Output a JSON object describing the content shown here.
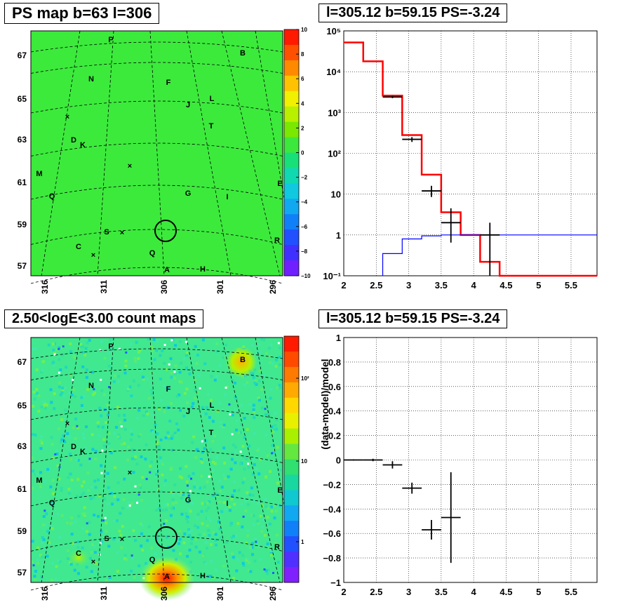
{
  "titles": {
    "ps_map": "PS map b=63 l=306",
    "spectrum": "l=305.12 b=59.15 PS=-3.24",
    "count_map": "2.50<logE<3.00 count maps",
    "residual": "l=305.12 b=59.15 PS=-3.24"
  },
  "chart_data": [
    {
      "type": "heatmap",
      "panel": "ps_map",
      "title": "PS map b=63 l=306",
      "x_tick_labels": [
        "316",
        "311",
        "306",
        "301",
        "296"
      ],
      "y_tick_labels": [
        "67",
        "65",
        "63",
        "61",
        "59",
        "57"
      ],
      "colorbar_ticks": [
        "10",
        "8",
        "6",
        "4",
        "2",
        "0",
        "−2",
        "−4",
        "−6",
        "−8",
        "−10"
      ],
      "colorbar_range": [
        -10,
        10
      ],
      "source_labels": [
        "P",
        "B",
        "N",
        "F",
        "J",
        "L",
        "T",
        "D",
        "K",
        "M",
        "G",
        "I",
        "E",
        "Q",
        "S",
        "R",
        "C",
        "Q",
        "A",
        "H"
      ],
      "marker": {
        "l": 305.12,
        "b": 59.15
      }
    },
    {
      "type": "line",
      "panel": "spectrum",
      "title": "l=305.12 b=59.15 PS=-3.24",
      "x_tick_labels": [
        "2",
        "2.5",
        "3",
        "3.5",
        "4",
        "4.5",
        "5",
        "5.5"
      ],
      "y_tick_labels": [
        "10⁻¹",
        "1",
        "10",
        "10²",
        "10³",
        "10⁴",
        "10⁵"
      ],
      "xlim": [
        2,
        5.9
      ],
      "ylim": [
        0.1,
        100000
      ],
      "yscale": "log",
      "grid": true,
      "series": [
        {
          "color": "#ff0000",
          "style": "step",
          "edges": [
            2,
            2.3,
            2.6,
            2.9,
            3.2,
            3.5,
            3.8,
            4.1,
            4.4,
            5.9
          ],
          "values": [
            52000,
            18000,
            2600,
            280,
            30,
            3.6,
            1.0,
            0.22,
            0.1
          ]
        },
        {
          "color": "#0000ff",
          "style": "step",
          "edges": [
            2.6,
            2.9,
            3.2,
            3.5,
            5.9
          ],
          "values": [
            0.35,
            0.8,
            0.95,
            1.0
          ]
        },
        {
          "color": "#000000",
          "style": "points",
          "x": [
            2.75,
            3.05,
            3.35,
            3.65,
            4.25
          ],
          "y": [
            2400,
            220,
            12,
            2.0,
            1.0
          ],
          "xerr": [
            0.15,
            0.15,
            0.15,
            0.15,
            0.15
          ],
          "ylo": [
            2250,
            190,
            8.5,
            0.65,
            0.1
          ],
          "yhi": [
            2550,
            250,
            16,
            4.5,
            2.0
          ]
        }
      ]
    },
    {
      "type": "heatmap",
      "panel": "count_map",
      "title": "2.50<logE<3.00 count maps",
      "x_tick_labels": [
        "316",
        "311",
        "306",
        "301",
        "296"
      ],
      "y_tick_labels": [
        "67",
        "65",
        "63",
        "61",
        "59",
        "57"
      ],
      "colorbar_ticks": [
        "10²",
        "10",
        "1"
      ],
      "colorbar_scale": "log",
      "source_labels": [
        "P",
        "B",
        "N",
        "F",
        "J",
        "L",
        "T",
        "D",
        "K",
        "M",
        "G",
        "I",
        "E",
        "Q",
        "S",
        "R",
        "C",
        "Q",
        "A",
        "H"
      ],
      "marker": {
        "l": 305.12,
        "b": 59.15
      }
    },
    {
      "type": "scatter",
      "panel": "residual",
      "title": "l=305.12 b=59.15 PS=-3.24",
      "ylabel": "(data-model)/model",
      "x_tick_labels": [
        "2",
        "2.5",
        "3",
        "3.5",
        "4",
        "4.5",
        "5",
        "5.5"
      ],
      "y_tick_labels": [
        "−1",
        "−0.8",
        "−0.6",
        "−0.4",
        "−0.2",
        "0",
        "0.2",
        "0.4",
        "0.6",
        "0.8",
        "1"
      ],
      "xlim": [
        2,
        5.9
      ],
      "ylim": [
        -1,
        1
      ],
      "grid": true,
      "points": {
        "x": [
          2.15,
          2.45,
          2.75,
          3.05,
          3.35,
          3.65
        ],
        "y": [
          0.0,
          0.0,
          -0.04,
          -0.23,
          -0.57,
          -0.47
        ],
        "xerr": [
          0.15,
          0.15,
          0.15,
          0.15,
          0.15,
          0.15
        ],
        "yerr": [
          0.005,
          0.01,
          0.03,
          0.045,
          0.08,
          0.37
        ]
      }
    }
  ]
}
